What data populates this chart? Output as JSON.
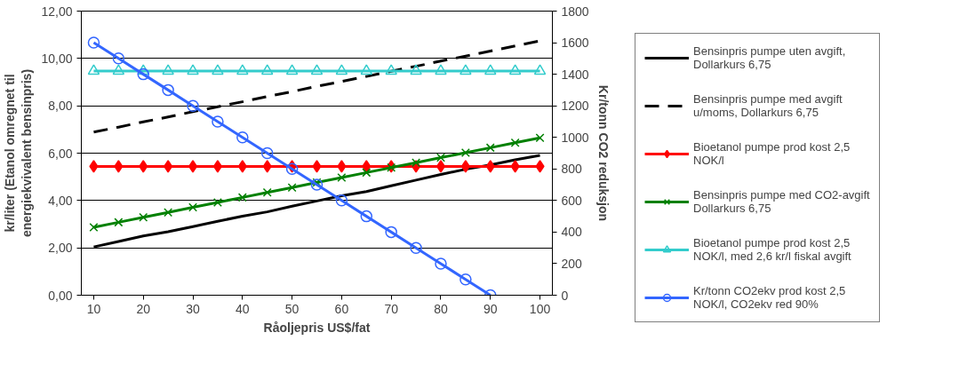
{
  "chart_data": {
    "type": "line",
    "xlabel": "Råoljepris US$/fat",
    "ylabel": "kr/liter (Etanol omregnet til energiekvivalent bensinpris)",
    "y2label": "Kr/tonn CO2 reduksjon",
    "x": [
      10,
      15,
      20,
      25,
      30,
      35,
      40,
      45,
      50,
      55,
      60,
      65,
      70,
      75,
      80,
      85,
      90,
      95,
      100
    ],
    "xlim": [
      7.5,
      102.5
    ],
    "xticks": [
      10,
      20,
      30,
      40,
      50,
      60,
      70,
      80,
      90,
      100
    ],
    "ylim": [
      0,
      12
    ],
    "yticks": [
      {
        "value": 0,
        "label": "0,00"
      },
      {
        "value": 2,
        "label": "2,00"
      },
      {
        "value": 4,
        "label": "4,00"
      },
      {
        "value": 6,
        "label": "6,00"
      },
      {
        "value": 8,
        "label": "8,00"
      },
      {
        "value": 10,
        "label": "10,00"
      },
      {
        "value": 12,
        "label": "12,00"
      }
    ],
    "y2lim": [
      0,
      1800
    ],
    "y2ticks": [
      0,
      200,
      400,
      600,
      800,
      1000,
      1200,
      1400,
      1600,
      1800
    ],
    "grid": "y",
    "legend": "right",
    "series": [
      {
        "name": "Bensinpris pumpe uten avgift, Dollarkurs 6,75",
        "color": "#000000",
        "marker": "none",
        "line_style": "solid",
        "values": [
          2.04,
          2.27,
          2.5,
          2.68,
          2.9,
          3.12,
          3.34,
          3.52,
          3.76,
          3.98,
          4.2,
          4.38,
          4.62,
          4.86,
          5.1,
          5.32,
          5.5,
          5.72,
          5.91
        ]
      },
      {
        "name": "Bensinpris pumpe med avgift u/moms, Dollarkurs 6,75",
        "color": "#000000",
        "marker": "none",
        "line_style": "dashed",
        "values": [
          6.89,
          7.1,
          7.32,
          7.53,
          7.75,
          7.96,
          8.17,
          8.39,
          8.6,
          8.82,
          9.03,
          9.24,
          9.46,
          9.67,
          9.89,
          10.1,
          10.31,
          10.53,
          10.74
        ]
      },
      {
        "name": "Bioetanol pumpe prod kost 2,5 NOK/l",
        "color": "#ff0000",
        "marker": "diamond",
        "line_style": "solid",
        "values": [
          5.44,
          5.44,
          5.44,
          5.44,
          5.44,
          5.44,
          5.44,
          5.44,
          5.44,
          5.44,
          5.44,
          5.44,
          5.44,
          5.44,
          5.44,
          5.44,
          5.44,
          5.44,
          5.44
        ]
      },
      {
        "name": "Bensinpris pumpe med CO2-avgift Dollarkurs 6,75",
        "color": "#008000",
        "marker": "cross",
        "line_style": "solid",
        "values": [
          2.87,
          3.08,
          3.29,
          3.5,
          3.71,
          3.92,
          4.13,
          4.34,
          4.55,
          4.76,
          4.97,
          5.18,
          5.39,
          5.6,
          5.81,
          6.02,
          6.23,
          6.44,
          6.65
        ]
      },
      {
        "name": "Bioetanol pumpe prod kost 2,5 NOK/l, med 2,6 kr/l fiskal avgift",
        "color": "#33cccc",
        "marker": "triangle",
        "line_style": "solid",
        "values": [
          9.47,
          9.47,
          9.47,
          9.47,
          9.47,
          9.47,
          9.47,
          9.47,
          9.47,
          9.47,
          9.47,
          9.47,
          9.47,
          9.47,
          9.47,
          9.47,
          9.47,
          9.47,
          9.47
        ]
      },
      {
        "name": "Kr/tonn CO2ekv prod kost 2,5 NOK/l, CO2ekv red 90%",
        "color": "#3366ff",
        "marker": "circle",
        "line_style": "solid",
        "axis": "y2",
        "x": [
          10,
          15,
          20,
          25,
          30,
          35,
          40,
          45,
          50,
          55,
          60,
          65,
          70,
          75,
          80,
          85,
          90
        ],
        "values": [
          1600,
          1500,
          1400,
          1300,
          1200,
          1100,
          1000,
          900,
          800,
          700,
          600,
          500,
          400,
          300,
          200,
          100,
          0
        ]
      }
    ]
  }
}
